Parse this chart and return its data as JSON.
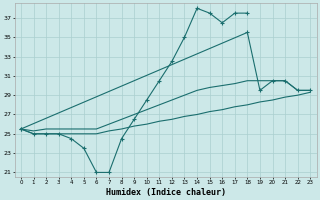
{
  "xlabel": "Humidex (Indice chaleur)",
  "background_color": "#cce8e8",
  "grid_color": "#aacfcf",
  "line_color": "#1a6e6e",
  "x": [
    0,
    1,
    2,
    3,
    4,
    5,
    6,
    7,
    8,
    9,
    10,
    11,
    12,
    13,
    14,
    15,
    16,
    17,
    18,
    19,
    20,
    21,
    22,
    23
  ],
  "series1": [
    25.5,
    25.0,
    25.0,
    25.0,
    24.5,
    23.5,
    21.0,
    21.0,
    24.5,
    26.5,
    28.5,
    30.5,
    32.5,
    35.0,
    38.0,
    37.5,
    36.5,
    37.5,
    37.5,
    null,
    null,
    null,
    null,
    null
  ],
  "series2": [
    25.5,
    null,
    null,
    null,
    null,
    null,
    null,
    null,
    null,
    null,
    null,
    null,
    null,
    null,
    null,
    null,
    null,
    null,
    35.5,
    29.5,
    30.5,
    30.5,
    29.5,
    29.5
  ],
  "series_flat1": [
    25.5,
    25.3,
    25.5,
    25.5,
    25.5,
    25.5,
    25.5,
    26.0,
    26.5,
    27.0,
    27.5,
    28.0,
    28.5,
    29.0,
    29.5,
    29.8,
    30.0,
    30.2,
    30.5,
    30.5,
    30.5,
    30.5,
    29.5,
    29.5
  ],
  "series_flat2": [
    25.5,
    25.0,
    25.0,
    25.0,
    25.0,
    25.0,
    25.0,
    25.3,
    25.5,
    25.8,
    26.0,
    26.3,
    26.5,
    26.8,
    27.0,
    27.3,
    27.5,
    27.8,
    28.0,
    28.3,
    28.5,
    28.8,
    29.0,
    29.3
  ],
  "ylim_min": 20.5,
  "ylim_max": 38.5,
  "xlim_min": -0.5,
  "xlim_max": 23.5,
  "yticks": [
    21,
    23,
    25,
    27,
    29,
    31,
    33,
    35,
    37
  ],
  "xticks": [
    0,
    1,
    2,
    3,
    4,
    5,
    6,
    7,
    8,
    9,
    10,
    11,
    12,
    13,
    14,
    15,
    16,
    17,
    18,
    19,
    20,
    21,
    22,
    23
  ]
}
